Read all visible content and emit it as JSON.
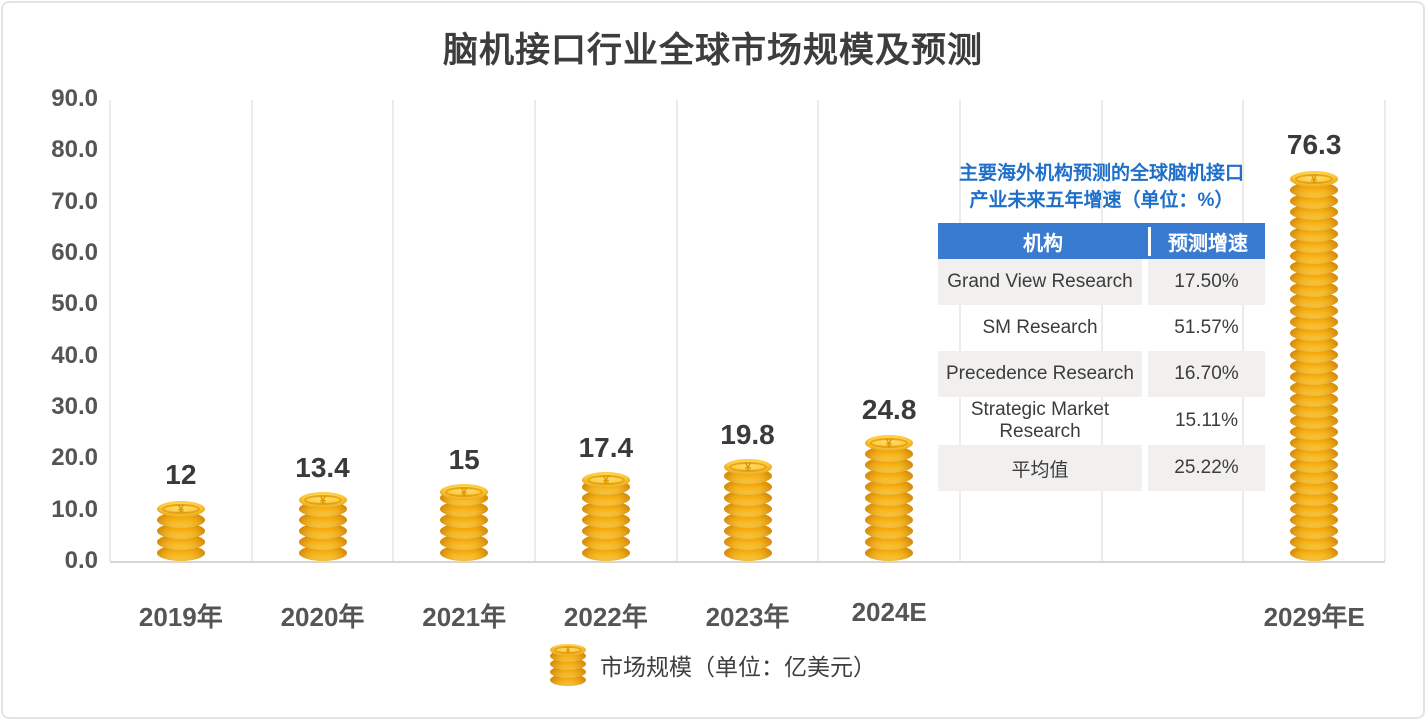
{
  "title": "脑机接口行业全球市场规模及预测",
  "chart_data": {
    "type": "bar",
    "title": "脑机接口行业全球市场规模及预测",
    "categories": [
      "2019年",
      "2020年",
      "2021年",
      "2022年",
      "2023年",
      "2024E",
      "2029年E"
    ],
    "values": [
      12,
      13.4,
      15,
      17.4,
      19.8,
      24.8,
      76.3
    ],
    "value_labels": [
      "12",
      "13.4",
      "15",
      "17.4",
      "19.8",
      "24.8",
      "76.3"
    ],
    "slot_index": [
      0,
      1,
      2,
      3,
      4,
      5,
      8
    ],
    "total_slots": 9,
    "ylim": [
      0,
      90
    ],
    "ytick_labels": [
      "90.0",
      "80.0",
      "70.0",
      "60.0",
      "50.0",
      "40.0",
      "30.0",
      "20.0",
      "10.0",
      "0.0"
    ],
    "grid": "vertical-only",
    "legend_position": "bottom-center",
    "bar_style": "gold-coin-stack",
    "bar_color": "#f7b013",
    "coin_accent_color": "#de9600"
  },
  "legend": {
    "icon": "coin-stack-icon",
    "label": "市场规模（单位：亿美元）"
  },
  "inset_table": {
    "title_line1": "主要海外机构预测的全球脑机接口",
    "title_line2": "产业未来五年增速（单位：%）",
    "title_color": "#1f6fc9",
    "header_bg_color": "#3a7bd2",
    "headers": [
      "机构",
      "预测增速"
    ],
    "rows": [
      {
        "org": "Grand View Research",
        "rate": "17.50%"
      },
      {
        "org": "SM Research",
        "rate": "51.57%"
      },
      {
        "org": "Precedence Research",
        "rate": "16.70%"
      },
      {
        "org": "Strategic Market Research",
        "rate": "15.11%"
      },
      {
        "org": "平均值",
        "rate": "25.22%"
      }
    ]
  }
}
